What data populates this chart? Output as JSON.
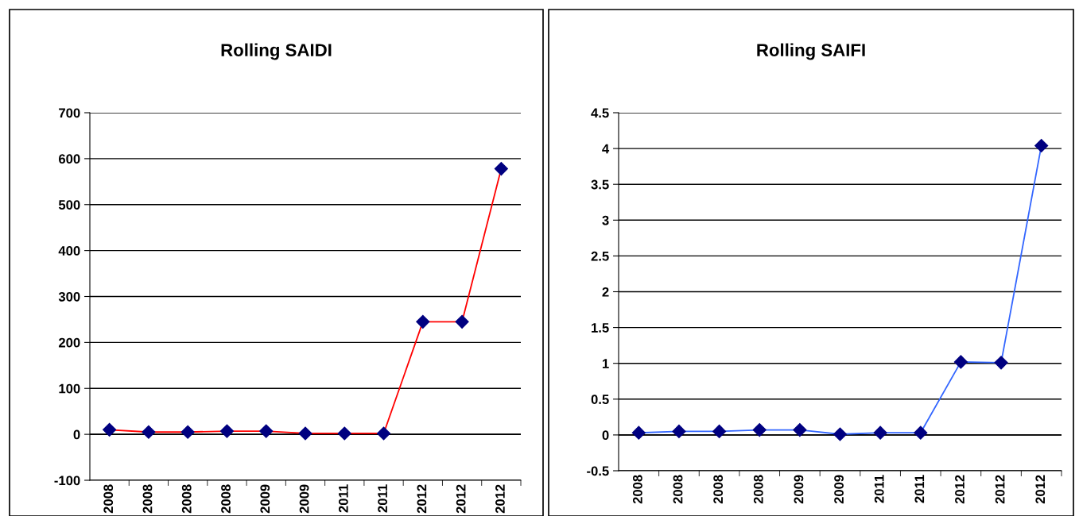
{
  "chart_data": [
    {
      "type": "line",
      "title": "Rolling SAIDI",
      "categories": [
        "2008",
        "2008",
        "2008",
        "2008",
        "2009",
        "2009",
        "2011",
        "2011",
        "2012",
        "2012",
        "2012"
      ],
      "series": [
        {
          "color": "#ff0000",
          "values": [
            10,
            5,
            5,
            7,
            7,
            2,
            2,
            2,
            245,
            245,
            578
          ]
        }
      ],
      "ylim": [
        -100,
        700
      ],
      "yticks": [
        -100,
        0,
        100,
        200,
        300,
        400,
        500,
        600,
        700
      ],
      "grid": "y",
      "marker": "diamond",
      "legend": false
    },
    {
      "type": "line",
      "title": "Rolling SAIFI",
      "categories": [
        "2008",
        "2008",
        "2008",
        "2008",
        "2009",
        "2009",
        "2011",
        "2011",
        "2012",
        "2012",
        "2012"
      ],
      "series": [
        {
          "color": "#3366ff",
          "values": [
            0.03,
            0.05,
            0.05,
            0.07,
            0.07,
            0.01,
            0.03,
            0.03,
            1.02,
            1.01,
            4.04
          ]
        }
      ],
      "ylim": [
        -0.5,
        4.5
      ],
      "yticks": [
        -0.5,
        0,
        0.5,
        1,
        1.5,
        2,
        2.5,
        3,
        3.5,
        4,
        4.5
      ],
      "grid": "y",
      "marker": "diamond",
      "legend": false
    }
  ]
}
